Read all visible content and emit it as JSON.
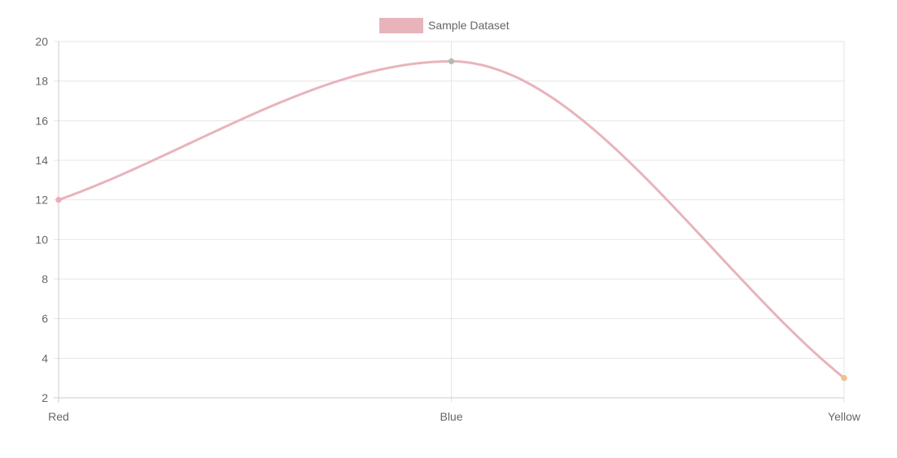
{
  "chart_data": {
    "type": "line",
    "categories": [
      "Red",
      "Blue",
      "Yellow"
    ],
    "series": [
      {
        "name": "Sample Dataset",
        "values": [
          12,
          19,
          3
        ],
        "line_color": "#e8b4bc",
        "point_colors": [
          "#f2a9b8",
          "#a8bfb4",
          "#f5c27a"
        ]
      }
    ],
    "ylim": [
      2,
      20
    ],
    "yticks": [
      2,
      4,
      6,
      8,
      10,
      12,
      14,
      16,
      18,
      20
    ],
    "legend": "top-center",
    "grid": true,
    "curve": "smooth"
  },
  "colors": {
    "grid": "#e6e6e6",
    "axis": "#cccccc",
    "tick_text": "#666666"
  }
}
